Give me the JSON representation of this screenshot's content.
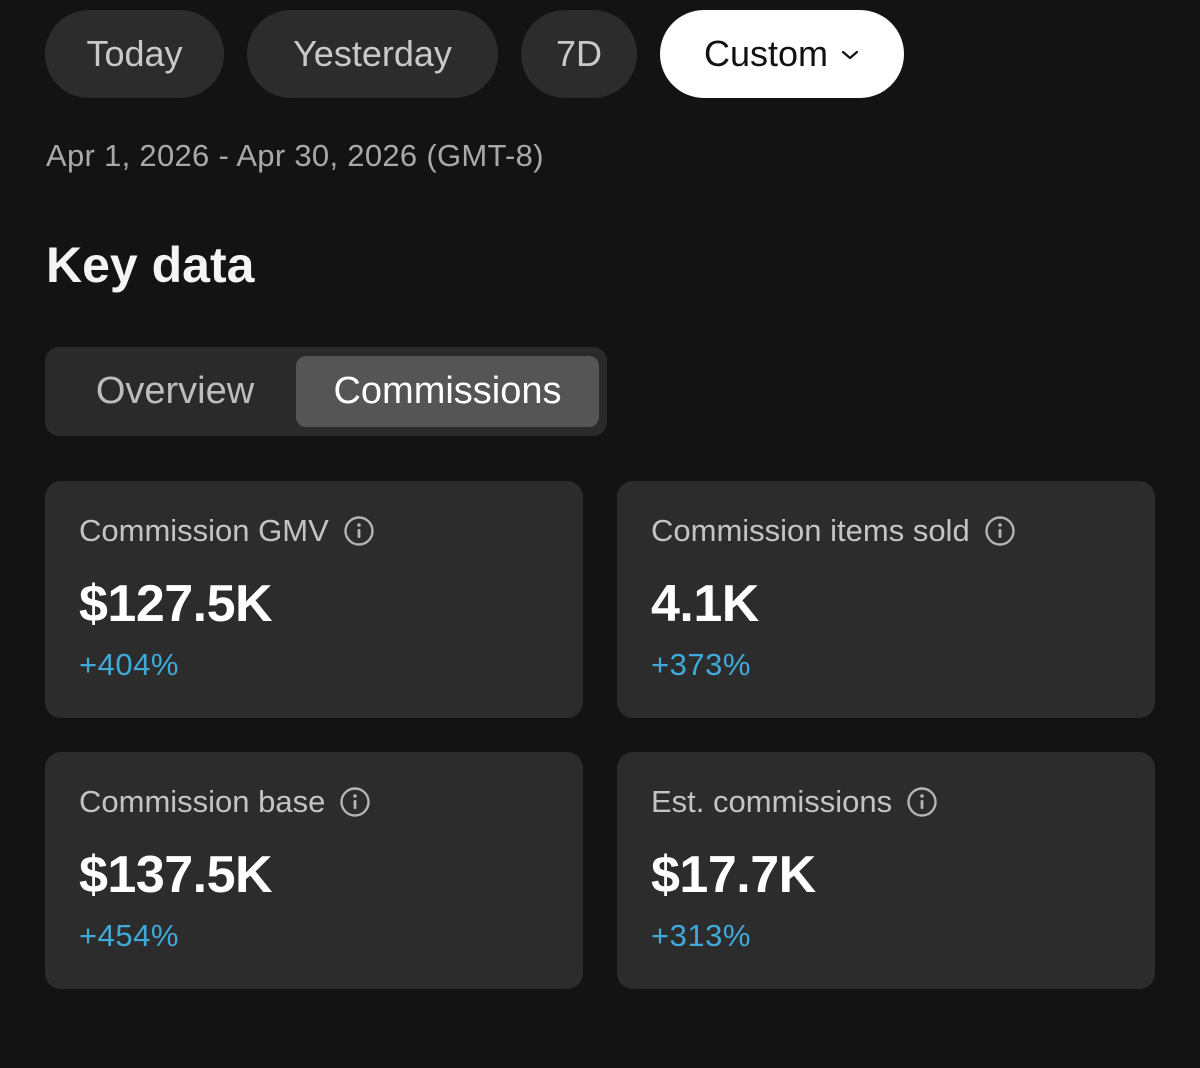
{
  "filters": {
    "items": [
      {
        "label": "Today"
      },
      {
        "label": "Yesterday"
      },
      {
        "label": "7D"
      },
      {
        "label": "Custom",
        "selected": true,
        "icon": "chevron-down-icon"
      }
    ]
  },
  "date_range": "Apr 1, 2026 - Apr 30, 2026 (GMT-8)",
  "key_data": {
    "title": "Key data",
    "tabs": [
      {
        "label": "Overview",
        "selected": false
      },
      {
        "label": "Commissions",
        "selected": true
      }
    ],
    "cards": [
      {
        "label": "Commission GMV",
        "value": "$127.5K",
        "delta": "+404%",
        "icon": "info-icon"
      },
      {
        "label": "Commission items sold",
        "value": "4.1K",
        "delta": "+373%",
        "icon": "info-icon"
      },
      {
        "label": "Commission base",
        "value": "$137.5K",
        "delta": "+454%",
        "icon": "info-icon"
      },
      {
        "label": "Est. commissions",
        "value": "$17.7K",
        "delta": "+313%",
        "icon": "info-icon"
      }
    ]
  },
  "colors": {
    "background": "#131313",
    "card": "#2c2c2c",
    "accent_delta": "#3fa9d9",
    "selected_pill": "#ffffff"
  }
}
